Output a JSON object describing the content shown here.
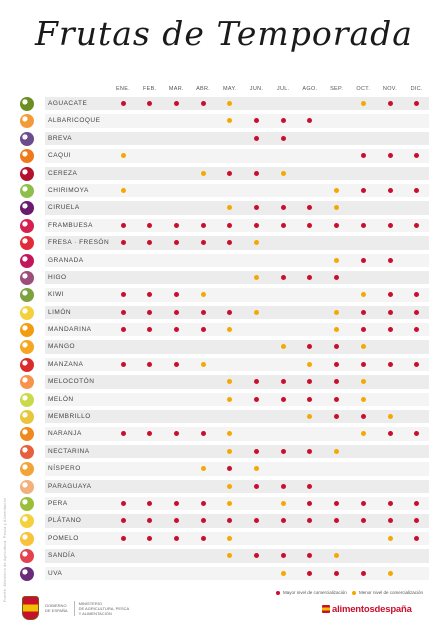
{
  "title": "Frutas de Temporada",
  "months": [
    "ENE.",
    "FEB.",
    "MAR.",
    "ABR.",
    "MAY.",
    "JUN.",
    "JUL.",
    "AGO.",
    "SEP.",
    "OCT.",
    "NOV.",
    "DIC."
  ],
  "colors": {
    "high": "#c8102e",
    "low": "#f5a800"
  },
  "legend": {
    "high": "Mayor nivel de comercialización",
    "low": "Menor nivel de comercialización"
  },
  "fruits": [
    {
      "name": "AGUACATE",
      "icon": "avocado-icon",
      "icon_color": "#6b8e23",
      "months": [
        "H",
        "H",
        "H",
        "H",
        "L",
        "",
        "",
        "",
        "",
        "L",
        "H",
        "H"
      ]
    },
    {
      "name": "ALBARICOQUE",
      "icon": "apricot-icon",
      "icon_color": "#f29b38",
      "months": [
        "",
        "",
        "",
        "",
        "L",
        "H",
        "H",
        "H",
        "",
        "",
        "",
        ""
      ]
    },
    {
      "name": "BREVA",
      "icon": "early-fig-icon",
      "icon_color": "#6d4c8e",
      "months": [
        "",
        "",
        "",
        "",
        "",
        "H",
        "H",
        "",
        "",
        "",
        "",
        ""
      ]
    },
    {
      "name": "CAQUI",
      "icon": "persimmon-icon",
      "icon_color": "#f07a1a",
      "months": [
        "L",
        "",
        "",
        "",
        "",
        "",
        "",
        "",
        "",
        "H",
        "H",
        "H"
      ]
    },
    {
      "name": "CEREZA",
      "icon": "cherry-icon",
      "icon_color": "#b3122e",
      "months": [
        "",
        "",
        "",
        "L",
        "H",
        "H",
        "L",
        "",
        "",
        "",
        "",
        ""
      ]
    },
    {
      "name": "CHIRIMOYA",
      "icon": "cherimoya-icon",
      "icon_color": "#8fbf4a",
      "months": [
        "L",
        "",
        "",
        "",
        "",
        "",
        "",
        "",
        "L",
        "H",
        "H",
        "H"
      ]
    },
    {
      "name": "CIRUELA",
      "icon": "plum-icon",
      "icon_color": "#6a1b6e",
      "months": [
        "",
        "",
        "",
        "",
        "L",
        "H",
        "H",
        "H",
        "L",
        "",
        "",
        ""
      ]
    },
    {
      "name": "FRAMBUESA",
      "icon": "raspberry-icon",
      "icon_color": "#d6204f",
      "months": [
        "H",
        "H",
        "H",
        "H",
        "H",
        "H",
        "H",
        "H",
        "H",
        "H",
        "H",
        "H"
      ]
    },
    {
      "name": "FRESA · FRESÓN",
      "icon": "strawberry-icon",
      "icon_color": "#e22b3a",
      "months": [
        "H",
        "H",
        "H",
        "H",
        "H",
        "L",
        "",
        "",
        "",
        "",
        "",
        ""
      ]
    },
    {
      "name": "GRANADA",
      "icon": "pomegranate-icon",
      "icon_color": "#c2185b",
      "months": [
        "",
        "",
        "",
        "",
        "",
        "",
        "",
        "",
        "L",
        "H",
        "H",
        ""
      ]
    },
    {
      "name": "HIGO",
      "icon": "fig-icon",
      "icon_color": "#9c4d7a",
      "months": [
        "",
        "",
        "",
        "",
        "",
        "L",
        "H",
        "H",
        "H",
        "",
        "",
        ""
      ]
    },
    {
      "name": "KIWI",
      "icon": "kiwi-icon",
      "icon_color": "#7ba23f",
      "months": [
        "H",
        "H",
        "H",
        "L",
        "",
        "",
        "",
        "",
        "",
        "L",
        "H",
        "H"
      ]
    },
    {
      "name": "LIMÓN",
      "icon": "lemon-icon",
      "icon_color": "#f4d03f",
      "months": [
        "H",
        "H",
        "H",
        "H",
        "H",
        "L",
        "",
        "",
        "L",
        "H",
        "H",
        "H"
      ]
    },
    {
      "name": "MANDARINA",
      "icon": "mandarin-icon",
      "icon_color": "#f39c12",
      "months": [
        "H",
        "H",
        "H",
        "H",
        "L",
        "",
        "",
        "",
        "L",
        "H",
        "H",
        "H"
      ]
    },
    {
      "name": "MANGO",
      "icon": "mango-icon",
      "icon_color": "#f5a623",
      "months": [
        "",
        "",
        "",
        "",
        "",
        "",
        "L",
        "H",
        "H",
        "L",
        "",
        ""
      ]
    },
    {
      "name": "MANZANA",
      "icon": "apple-icon",
      "icon_color": "#d92b2b",
      "months": [
        "H",
        "H",
        "H",
        "L",
        "",
        "",
        "",
        "L",
        "H",
        "H",
        "H",
        "H"
      ]
    },
    {
      "name": "MELOCOTÓN",
      "icon": "peach-icon",
      "icon_color": "#f7934c",
      "months": [
        "",
        "",
        "",
        "",
        "L",
        "H",
        "H",
        "H",
        "H",
        "L",
        "",
        ""
      ]
    },
    {
      "name": "MELÓN",
      "icon": "melon-icon",
      "icon_color": "#c9d94a",
      "months": [
        "",
        "",
        "",
        "",
        "L",
        "H",
        "H",
        "H",
        "H",
        "L",
        "",
        ""
      ]
    },
    {
      "name": "MEMBRILLO",
      "icon": "quince-icon",
      "icon_color": "#e8c53a",
      "months": [
        "",
        "",
        "",
        "",
        "",
        "",
        "",
        "L",
        "H",
        "H",
        "L",
        ""
      ]
    },
    {
      "name": "NARANJA",
      "icon": "orange-icon",
      "icon_color": "#f08a1c",
      "months": [
        "H",
        "H",
        "H",
        "H",
        "L",
        "",
        "",
        "",
        "",
        "L",
        "H",
        "H"
      ]
    },
    {
      "name": "NECTARINA",
      "icon": "nectarine-icon",
      "icon_color": "#e5603b",
      "months": [
        "",
        "",
        "",
        "",
        "L",
        "H",
        "H",
        "H",
        "L",
        "",
        "",
        ""
      ]
    },
    {
      "name": "NÍSPERO",
      "icon": "loquat-icon",
      "icon_color": "#f2a33a",
      "months": [
        "",
        "",
        "",
        "L",
        "H",
        "L",
        "",
        "",
        "",
        "",
        "",
        ""
      ]
    },
    {
      "name": "PARAGUAYA",
      "icon": "flat-peach-icon",
      "icon_color": "#f2b07a",
      "months": [
        "",
        "",
        "",
        "",
        "L",
        "H",
        "H",
        "H",
        "",
        "",
        "",
        ""
      ]
    },
    {
      "name": "PERA",
      "icon": "pear-icon",
      "icon_color": "#9bbf3a",
      "months": [
        "H",
        "H",
        "H",
        "H",
        "L",
        "",
        "L",
        "H",
        "H",
        "H",
        "H",
        "H"
      ]
    },
    {
      "name": "PLÁTANO",
      "icon": "banana-icon",
      "icon_color": "#f4d03f",
      "months": [
        "H",
        "H",
        "H",
        "H",
        "H",
        "H",
        "H",
        "H",
        "H",
        "H",
        "H",
        "H"
      ]
    },
    {
      "name": "POMELO",
      "icon": "grapefruit-icon",
      "icon_color": "#f8c23a",
      "months": [
        "H",
        "H",
        "H",
        "H",
        "L",
        "",
        "",
        "",
        "",
        "",
        "L",
        "H"
      ]
    },
    {
      "name": "SANDÍA",
      "icon": "watermelon-icon",
      "icon_color": "#e2434f",
      "months": [
        "",
        "",
        "",
        "",
        "L",
        "H",
        "H",
        "H",
        "L",
        "",
        "",
        ""
      ]
    },
    {
      "name": "UVA",
      "icon": "grape-icon",
      "icon_color": "#6a2c7a",
      "months": [
        "",
        "",
        "",
        "",
        "",
        "",
        "L",
        "H",
        "H",
        "H",
        "L",
        ""
      ]
    }
  ],
  "footer": {
    "gov_line1": "GOBIERNO",
    "gov_line2": "DE ESPAÑA",
    "ministry_line1": "MINISTERIO",
    "ministry_line2": "DE AGRICULTURA, PESCA",
    "ministry_line3": "Y ALIMENTACIÓN",
    "brand": "alimentosdespaña",
    "credit": "Fuente: Ministerio de Agricultura, Pesca y Alimentación"
  }
}
